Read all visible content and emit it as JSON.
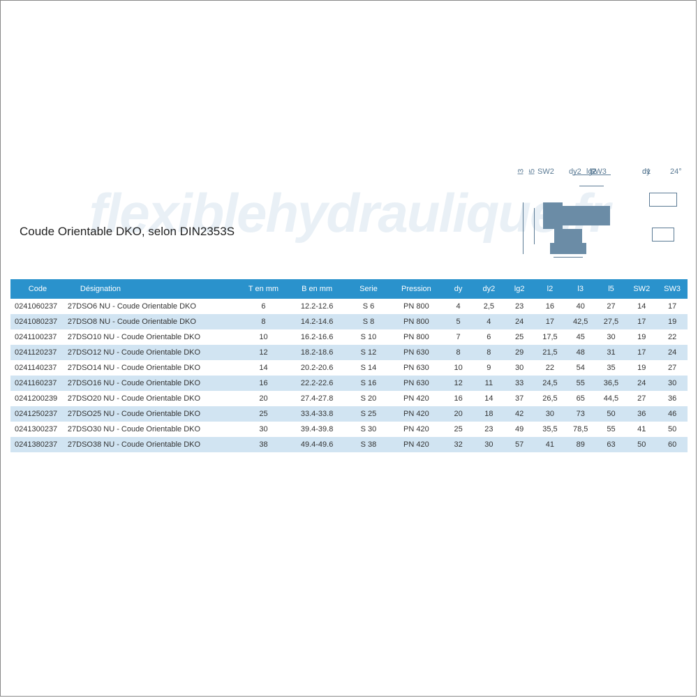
{
  "watermark": "flexiblehydraulique.fr",
  "title": "Coude Orientable DKO, selon DIN2353S",
  "diagram": {
    "labels": {
      "lg2": "lg2",
      "l2": "l2",
      "sw2": "SW2",
      "sw3": "SW3",
      "l3": "l3",
      "l5": "l5",
      "dy": "dy",
      "d1": "d1",
      "dy2": "dy2",
      "deg": "24°"
    },
    "color": "#6b8ca6"
  },
  "table": {
    "header_bg": "#2a92cc",
    "row_odd_bg": "#ffffff",
    "row_even_bg": "#d1e4f2",
    "columns": [
      "Code",
      "Désignation",
      "T en mm",
      "B en mm",
      "Serie",
      "Pression",
      "dy",
      "dy2",
      "lg2",
      "l2",
      "l3",
      "l5",
      "SW2",
      "SW3"
    ],
    "rows": [
      [
        "0241060237",
        "27DSO6 NU - Coude Orientable DKO",
        "6",
        "12.2-12.6",
        "S 6",
        "PN 800",
        "4",
        "2,5",
        "23",
        "16",
        "40",
        "27",
        "14",
        "17"
      ],
      [
        "0241080237",
        "27DSO8 NU - Coude Orientable DKO",
        "8",
        "14.2-14.6",
        "S 8",
        "PN 800",
        "5",
        "4",
        "24",
        "17",
        "42,5",
        "27,5",
        "17",
        "19"
      ],
      [
        "0241100237",
        "27DSO10 NU - Coude Orientable DKO",
        "10",
        "16.2-16.6",
        "S 10",
        "PN 800",
        "7",
        "6",
        "25",
        "17,5",
        "45",
        "30",
        "19",
        "22"
      ],
      [
        "0241120237",
        "27DSO12 NU - Coude Orientable DKO",
        "12",
        "18.2-18.6",
        "S 12",
        "PN 630",
        "8",
        "8",
        "29",
        "21,5",
        "48",
        "31",
        "17",
        "24"
      ],
      [
        "0241140237",
        "27DSO14 NU - Coude Orientable DKO",
        "14",
        "20.2-20.6",
        "S 14",
        "PN 630",
        "10",
        "9",
        "30",
        "22",
        "54",
        "35",
        "19",
        "27"
      ],
      [
        "0241160237",
        "27DSO16 NU - Coude Orientable DKO",
        "16",
        "22.2-22.6",
        "S 16",
        "PN 630",
        "12",
        "11",
        "33",
        "24,5",
        "55",
        "36,5",
        "24",
        "30"
      ],
      [
        "0241200239",
        "27DSO20 NU - Coude Orientable DKO",
        "20",
        "27.4-27.8",
        "S 20",
        "PN 420",
        "16",
        "14",
        "37",
        "26,5",
        "65",
        "44,5",
        "27",
        "36"
      ],
      [
        "0241250237",
        "27DSO25 NU - Coude Orientable DKO",
        "25",
        "33.4-33.8",
        "S 25",
        "PN 420",
        "20",
        "18",
        "42",
        "30",
        "73",
        "50",
        "36",
        "46"
      ],
      [
        "0241300237",
        "27DSO30 NU - Coude Orientable DKO",
        "30",
        "39.4-39.8",
        "S 30",
        "PN 420",
        "25",
        "23",
        "49",
        "35,5",
        "78,5",
        "55",
        "41",
        "50"
      ],
      [
        "0241380237",
        "27DSO38 NU - Coude Orientable DKO",
        "38",
        "49.4-49.6",
        "S 38",
        "PN 420",
        "32",
        "30",
        "57",
        "41",
        "89",
        "63",
        "50",
        "60"
      ]
    ]
  }
}
